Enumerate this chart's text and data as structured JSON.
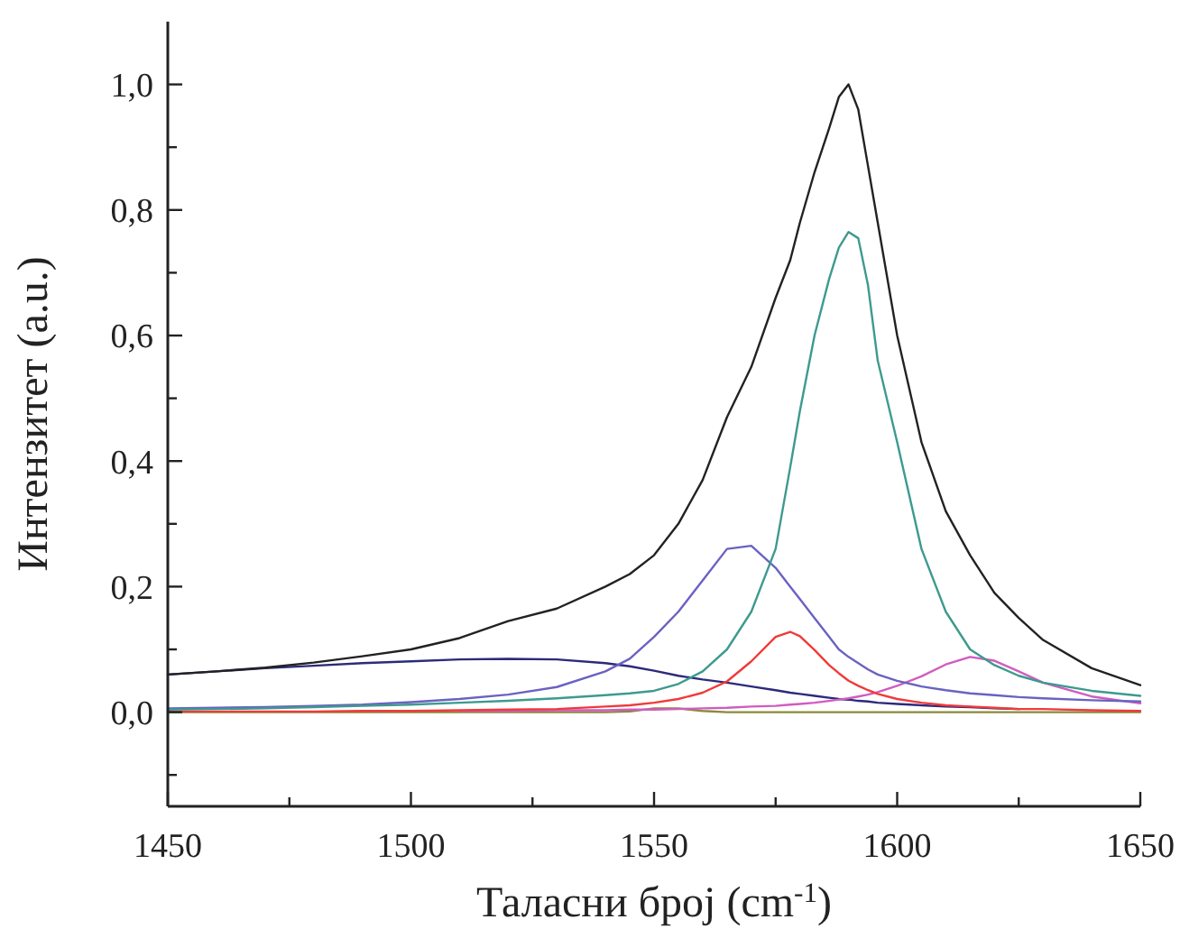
{
  "chart_data": {
    "type": "line",
    "xlabel": "Таласни број (cm$^{-1}$)",
    "ylabel": "Интензитет (a.u.)",
    "x": [
      1450,
      1460,
      1470,
      1480,
      1490,
      1500,
      1510,
      1520,
      1530,
      1540,
      1545,
      1550,
      1555,
      1560,
      1565,
      1570,
      1575,
      1578,
      1580,
      1583,
      1586,
      1588,
      1590,
      1592,
      1594,
      1596,
      1600,
      1605,
      1610,
      1615,
      1620,
      1625,
      1630,
      1640,
      1650
    ],
    "series": [
      {
        "color": "#8a8a3a",
        "values": [
          0,
          0,
          0,
          0,
          0,
          0,
          0,
          0,
          0,
          0,
          0.001,
          0.006,
          0.006,
          0.002,
          0,
          0,
          0,
          0,
          0,
          0,
          0,
          0,
          0,
          0,
          0,
          0,
          0,
          0,
          0,
          0,
          0,
          0,
          0,
          0,
          0
        ]
      },
      {
        "color": "#2c2a7a",
        "values": [
          0.06,
          0.065,
          0.07,
          0.074,
          0.078,
          0.081,
          0.084,
          0.085,
          0.084,
          0.078,
          0.073,
          0.066,
          0.058,
          0.052,
          0.047,
          0.041,
          0.035,
          0.031,
          0.029,
          0.026,
          0.023,
          0.021,
          0.02,
          0.018,
          0.017,
          0.015,
          0.013,
          0.011,
          0.009,
          0.008,
          0.006,
          0.005,
          null,
          null,
          null
        ]
      },
      {
        "color": "#d05cc0",
        "values": [
          null,
          null,
          null,
          null,
          null,
          null,
          0.002,
          0.002,
          0.003,
          0.003,
          0.004,
          0.004,
          0.005,
          0.006,
          0.007,
          0.009,
          0.01,
          0.012,
          0.013,
          0.015,
          0.018,
          0.02,
          0.022,
          0.025,
          0.028,
          0.032,
          0.042,
          0.057,
          0.076,
          0.088,
          0.082,
          0.065,
          0.047,
          0.025,
          0.014
        ]
      },
      {
        "color": "#f03a3a",
        "values": [
          0.001,
          0.001,
          0.001,
          0.001,
          0.002,
          0.002,
          0.003,
          0.004,
          0.005,
          0.009,
          0.011,
          0.015,
          0.021,
          0.031,
          0.049,
          0.081,
          0.12,
          0.128,
          0.121,
          0.099,
          0.075,
          0.062,
          0.05,
          0.042,
          0.035,
          0.029,
          0.021,
          0.015,
          0.011,
          0.009,
          0.007,
          0.005,
          0.005,
          0.003,
          0.002
        ]
      },
      {
        "color": "#6a62c2",
        "values": [
          0.006,
          0.007,
          0.008,
          0.01,
          0.012,
          0.016,
          0.021,
          0.028,
          0.04,
          0.065,
          0.085,
          0.12,
          0.16,
          0.21,
          0.26,
          0.265,
          0.23,
          0.2,
          0.18,
          0.15,
          0.12,
          0.1,
          0.088,
          0.078,
          0.068,
          0.06,
          0.05,
          0.041,
          0.035,
          0.03,
          0.027,
          0.024,
          0.022,
          0.019,
          0.017
        ]
      },
      {
        "color": "#3d9a8e",
        "values": [
          0.004,
          0.005,
          0.006,
          0.008,
          0.01,
          0.012,
          0.015,
          0.018,
          0.022,
          0.027,
          0.03,
          0.034,
          0.045,
          0.065,
          0.1,
          0.16,
          0.26,
          0.39,
          0.48,
          0.6,
          0.69,
          0.74,
          0.765,
          0.755,
          0.68,
          0.56,
          0.43,
          0.26,
          0.16,
          0.1,
          0.075,
          0.058,
          0.047,
          0.034,
          0.026
        ]
      },
      {
        "color": "#222222",
        "values": [
          0.06,
          0.065,
          0.071,
          0.079,
          0.089,
          0.1,
          0.118,
          0.145,
          0.165,
          0.2,
          0.22,
          0.25,
          0.3,
          0.37,
          0.47,
          0.55,
          0.66,
          0.72,
          0.78,
          0.86,
          0.93,
          0.98,
          1.0,
          0.96,
          0.87,
          0.78,
          0.6,
          0.43,
          0.32,
          0.25,
          0.19,
          0.15,
          0.115,
          0.07,
          0.043
        ]
      }
    ],
    "xlim": [
      1450,
      1650
    ],
    "xticks": [
      1450,
      {
        "value": 1475,
        "label": null
      },
      1500,
      {
        "value": 1525,
        "label": null
      },
      1550,
      {
        "value": 1575,
        "label": null
      },
      1600,
      {
        "value": 1625,
        "label": null
      },
      1650
    ],
    "ylim": [
      -0.15,
      1.1
    ],
    "yticks": [
      {
        "value": -0.1,
        "label": null
      },
      {
        "value": 0,
        "label": "0,0"
      },
      {
        "value": 0.1,
        "label": null
      },
      {
        "value": 0.2,
        "label": "0,2"
      },
      {
        "value": 0.3,
        "label": null
      },
      {
        "value": 0.4,
        "label": "0,4"
      },
      {
        "value": 0.5,
        "label": null
      },
      {
        "value": 0.6,
        "label": "0,6"
      },
      {
        "value": 0.7,
        "label": null
      },
      {
        "value": 0.8,
        "label": "0,8"
      },
      {
        "value": 0.9,
        "label": null
      },
      {
        "value": 1.0,
        "label": "1,0"
      }
    ],
    "grid": false,
    "marker": "none",
    "line_style": "solid"
  }
}
